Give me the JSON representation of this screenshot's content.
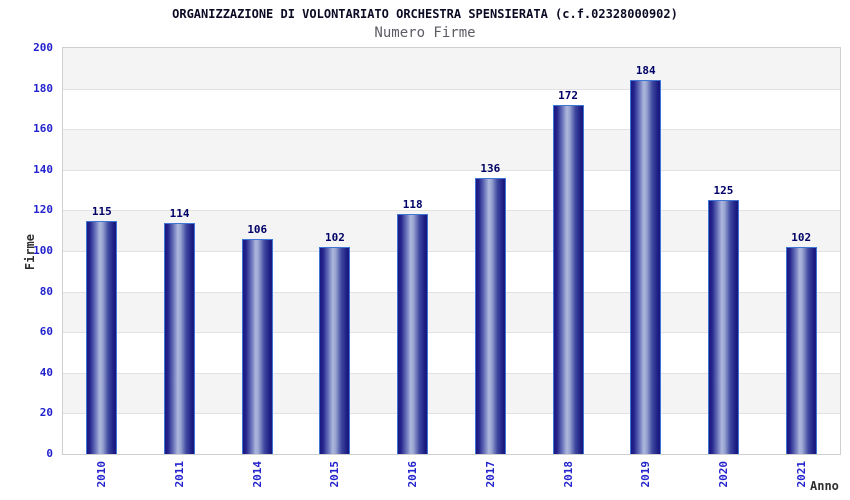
{
  "chart_data": {
    "type": "bar",
    "title": "ORGANIZZAZIONE DI VOLONTARIATO ORCHESTRA SPENSIERATA (c.f.02328000902)",
    "subtitle": "Numero Firme",
    "xlabel": "Anno",
    "ylabel": "Firme",
    "categories": [
      "2010",
      "2011",
      "2014",
      "2015",
      "2016",
      "2017",
      "2018",
      "2019",
      "2020",
      "2021"
    ],
    "values": [
      115,
      114,
      106,
      102,
      118,
      136,
      172,
      184,
      125,
      102
    ],
    "ylim": [
      0,
      200
    ],
    "ytick_step": 20,
    "yticks": [
      0,
      20,
      40,
      60,
      80,
      100,
      120,
      140,
      160,
      180,
      200
    ],
    "grid": "horizontal-bands-alternating",
    "legend": "none",
    "bar_value_labels": true,
    "colors": {
      "bar_dark": "#191980",
      "bar_mid": "#6d78bd",
      "bar_highlight": "#aeb8dc",
      "bar_border": "#3f76d6",
      "tick_label_blue": "#2323cd",
      "value_label_navy": "#000066",
      "title_color": "#0b0b25",
      "subtitle_color": "#5c5c64",
      "axis_title_color": "#2f2f2f",
      "band_gray": "#f4f4f4",
      "band_white": "#ffffff",
      "gridline": "#e2e2e2",
      "plot_border": "#cfcfcf"
    }
  }
}
